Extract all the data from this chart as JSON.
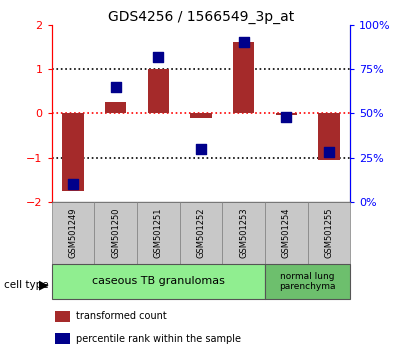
{
  "title": "GDS4256 / 1566549_3p_at",
  "samples": [
    "GSM501249",
    "GSM501250",
    "GSM501251",
    "GSM501252",
    "GSM501253",
    "GSM501254",
    "GSM501255"
  ],
  "red_values": [
    -1.75,
    0.25,
    1.0,
    -0.1,
    1.6,
    -0.05,
    -1.05
  ],
  "blue_values": [
    10,
    65,
    82,
    30,
    90,
    48,
    28
  ],
  "ylim_left": [
    -2,
    2
  ],
  "ylim_right": [
    0,
    100
  ],
  "yticks_left": [
    -2,
    -1,
    0,
    1,
    2
  ],
  "yticks_right": [
    0,
    25,
    50,
    75,
    100
  ],
  "ytick_labels_right": [
    "0%",
    "25%",
    "50%",
    "75%",
    "100%"
  ],
  "red_color": "#A52A2A",
  "blue_color": "#00008B",
  "legend_red": "transformed count",
  "legend_blue": "percentile rank within the sample",
  "bar_width": 0.5,
  "blue_marker_size": 55,
  "dotted_lines": [
    -1,
    0,
    1
  ],
  "cell_type_group1_label": "caseous TB granulomas",
  "cell_type_group2_label": "normal lung\nparenchyma",
  "cell_color1": "#90EE90",
  "cell_color2": "#6DBF6D",
  "gray_box_color": "#C8C8C8",
  "title_fontsize": 10,
  "tick_fontsize": 8,
  "sample_fontsize": 6,
  "cell_label_fontsize": 8,
  "legend_fontsize": 7
}
